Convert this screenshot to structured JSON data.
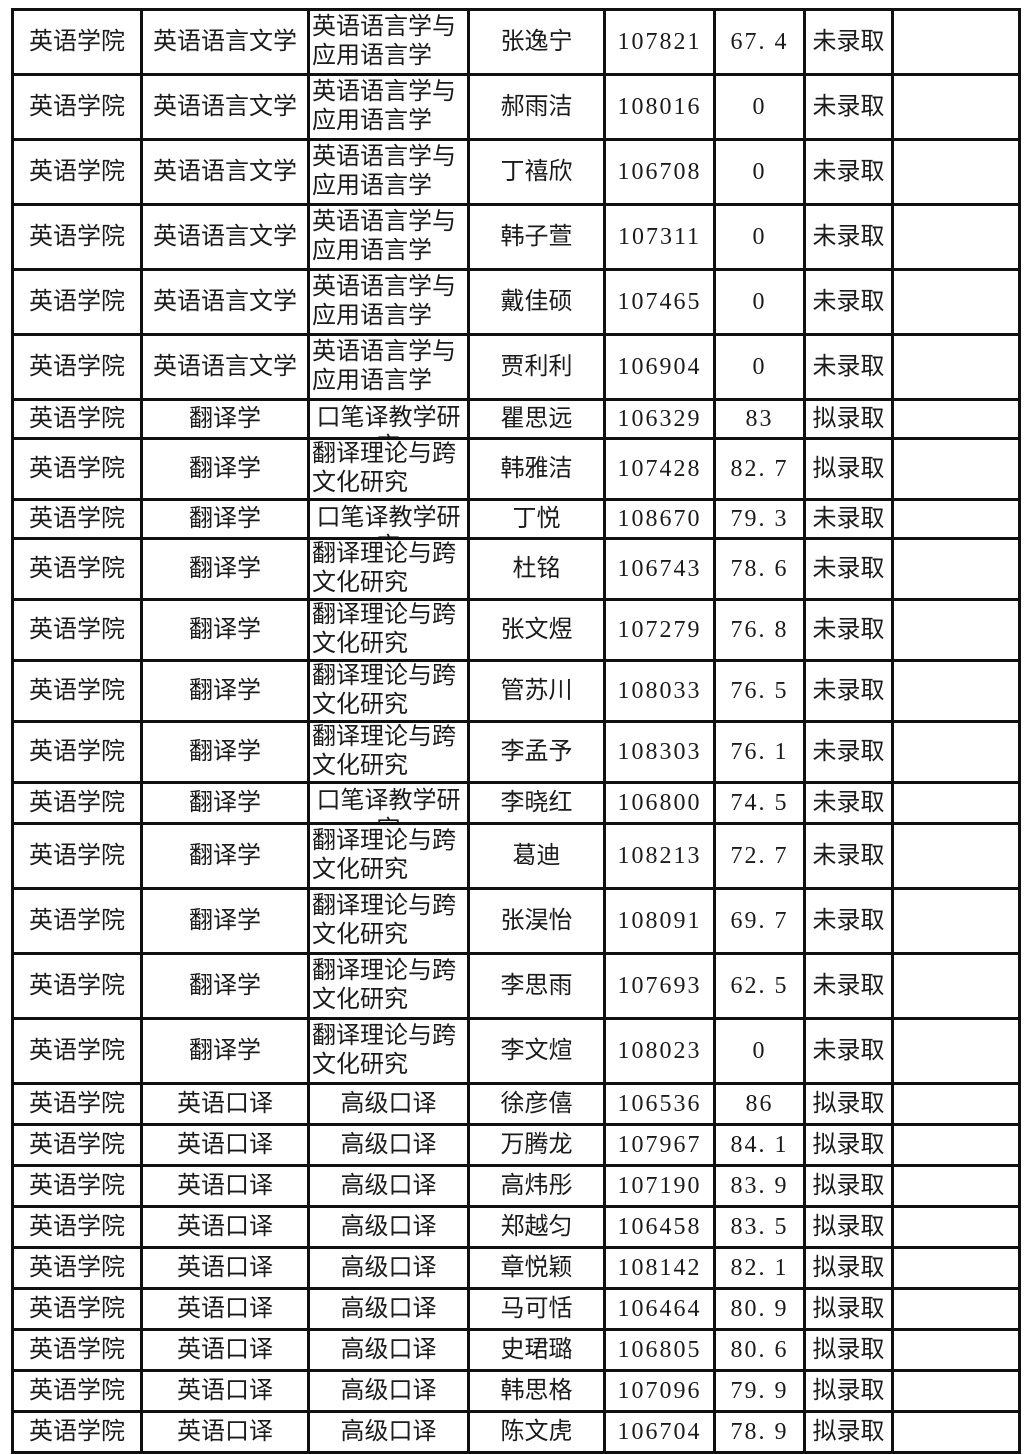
{
  "colors": {
    "background": "#ffffff",
    "grid_line": "#101010",
    "text": "#1b1b1b"
  },
  "table": {
    "column_keys": [
      "college",
      "major",
      "direction",
      "name",
      "exam_no",
      "score",
      "status",
      "note"
    ],
    "rows": [
      {
        "college": "英语学院",
        "major": "英语语言文学",
        "direction": "英语语言学与应用语言学",
        "name": "张逸宁",
        "exam_no": "107821",
        "score": "67. 4",
        "status": "未录取",
        "note": "",
        "rh": 65
      },
      {
        "college": "英语学院",
        "major": "英语语言文学",
        "direction": "英语语言学与应用语言学",
        "name": "郝雨洁",
        "exam_no": "108016",
        "score": "0",
        "status": "未录取",
        "note": "",
        "rh": 65
      },
      {
        "college": "英语学院",
        "major": "英语语言文学",
        "direction": "英语语言学与应用语言学",
        "name": "丁禧欣",
        "exam_no": "106708",
        "score": "0",
        "status": "未录取",
        "note": "",
        "rh": 65
      },
      {
        "college": "英语学院",
        "major": "英语语言文学",
        "direction": "英语语言学与应用语言学",
        "name": "韩子萱",
        "exam_no": "107311",
        "score": "0",
        "status": "未录取",
        "note": "",
        "rh": 65
      },
      {
        "college": "英语学院",
        "major": "英语语言文学",
        "direction": "英语语言学与应用语言学",
        "name": "戴佳硕",
        "exam_no": "107465",
        "score": "0",
        "status": "未录取",
        "note": "",
        "rh": 65
      },
      {
        "college": "英语学院",
        "major": "英语语言文学",
        "direction": "英语语言学与应用语言学",
        "name": "贾利利",
        "exam_no": "106904",
        "score": "0",
        "status": "未录取",
        "note": "",
        "rh": 65
      },
      {
        "college": "英语学院",
        "major": "翻译学",
        "direction": "口笔译教学研究",
        "name": "瞿思远",
        "exam_no": "106329",
        "score": "83",
        "status": "拟录取",
        "note": "",
        "rh": 39
      },
      {
        "college": "英语学院",
        "major": "翻译学",
        "direction": "翻译理论与跨文化研究",
        "name": "韩雅洁",
        "exam_no": "107428",
        "score": "82. 7",
        "status": "拟录取",
        "note": "",
        "rh": 57
      },
      {
        "college": "英语学院",
        "major": "翻译学",
        "direction": "口笔译教学研究",
        "name": "丁悦",
        "exam_no": "108670",
        "score": "79. 3",
        "status": "未录取",
        "note": "",
        "rh": 39
      },
      {
        "college": "英语学院",
        "major": "翻译学",
        "direction": "翻译理论与跨文化研究",
        "name": "杜铭",
        "exam_no": "106743",
        "score": "78. 6",
        "status": "未录取",
        "note": "",
        "rh": 57
      },
      {
        "college": "英语学院",
        "major": "翻译学",
        "direction": "翻译理论与跨文化研究",
        "name": "张文煜",
        "exam_no": "107279",
        "score": "76. 8",
        "status": "未录取",
        "note": "",
        "rh": 57
      },
      {
        "college": "英语学院",
        "major": "翻译学",
        "direction": "翻译理论与跨文化研究",
        "name": "管苏川",
        "exam_no": "108033",
        "score": "76. 5",
        "status": "未录取",
        "note": "",
        "rh": 57
      },
      {
        "college": "英语学院",
        "major": "翻译学",
        "direction": "翻译理论与跨文化研究",
        "name": "李孟予",
        "exam_no": "108303",
        "score": "76. 1",
        "status": "未录取",
        "note": "",
        "rh": 57
      },
      {
        "college": "英语学院",
        "major": "翻译学",
        "direction": "口笔译教学研究",
        "name": "李晓红",
        "exam_no": "106800",
        "score": "74. 5",
        "status": "未录取",
        "note": "",
        "rh": 41
      },
      {
        "college": "英语学院",
        "major": "翻译学",
        "direction": "翻译理论与跨文化研究",
        "name": "葛迪",
        "exam_no": "108213",
        "score": "72. 7",
        "status": "未录取",
        "note": "",
        "rh": 65
      },
      {
        "college": "英语学院",
        "major": "翻译学",
        "direction": "翻译理论与跨文化研究",
        "name": "张淏怡",
        "exam_no": "108091",
        "score": "69. 7",
        "status": "未录取",
        "note": "",
        "rh": 65
      },
      {
        "college": "英语学院",
        "major": "翻译学",
        "direction": "翻译理论与跨文化研究",
        "name": "李思雨",
        "exam_no": "107693",
        "score": "62. 5",
        "status": "未录取",
        "note": "",
        "rh": 65
      },
      {
        "college": "英语学院",
        "major": "翻译学",
        "direction": "翻译理论与跨文化研究",
        "name": "李文煊",
        "exam_no": "108023",
        "score": "0",
        "status": "未录取",
        "note": "",
        "rh": 65
      },
      {
        "college": "英语学院",
        "major": "英语口译",
        "direction": "高级口译",
        "name": "徐彦僖",
        "exam_no": "106536",
        "score": "86",
        "status": "拟录取",
        "note": "",
        "rh": 41
      },
      {
        "college": "英语学院",
        "major": "英语口译",
        "direction": "高级口译",
        "name": "万腾龙",
        "exam_no": "107967",
        "score": "84. 1",
        "status": "拟录取",
        "note": "",
        "rh": 41
      },
      {
        "college": "英语学院",
        "major": "英语口译",
        "direction": "高级口译",
        "name": "高炜彤",
        "exam_no": "107190",
        "score": "83. 9",
        "status": "拟录取",
        "note": "",
        "rh": 41
      },
      {
        "college": "英语学院",
        "major": "英语口译",
        "direction": "高级口译",
        "name": "郑越匀",
        "exam_no": "106458",
        "score": "83. 5",
        "status": "拟录取",
        "note": "",
        "rh": 41
      },
      {
        "college": "英语学院",
        "major": "英语口译",
        "direction": "高级口译",
        "name": "章悦颖",
        "exam_no": "108142",
        "score": "82. 1",
        "status": "拟录取",
        "note": "",
        "rh": 41
      },
      {
        "college": "英语学院",
        "major": "英语口译",
        "direction": "高级口译",
        "name": "马可恬",
        "exam_no": "106464",
        "score": "80. 9",
        "status": "拟录取",
        "note": "",
        "rh": 41
      },
      {
        "college": "英语学院",
        "major": "英语口译",
        "direction": "高级口译",
        "name": "史珺璐",
        "exam_no": "106805",
        "score": "80. 6",
        "status": "拟录取",
        "note": "",
        "rh": 41
      },
      {
        "college": "英语学院",
        "major": "英语口译",
        "direction": "高级口译",
        "name": "韩思格",
        "exam_no": "107096",
        "score": "79. 9",
        "status": "拟录取",
        "note": "",
        "rh": 41
      },
      {
        "college": "英语学院",
        "major": "英语口译",
        "direction": "高级口译",
        "name": "陈文虎",
        "exam_no": "106704",
        "score": "78. 9",
        "status": "拟录取",
        "note": "",
        "rh": 41
      }
    ]
  }
}
